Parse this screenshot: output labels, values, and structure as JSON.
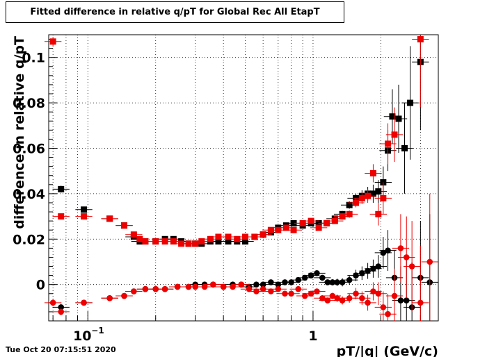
{
  "timestamp": "Tue Oct 20 07:15:51 2020",
  "chart_data": {
    "type": "scatter",
    "title": "Fitted difference in relative q/pT for Global Rec All EtapT",
    "xlabel": "pT/|q| (GeV/c)",
    "ylabel": "difference in relative q/pT",
    "x_scale": "log",
    "xlim": [
      0.067,
      3.6
    ],
    "ylim": [
      -0.016,
      0.11
    ],
    "grid": true,
    "y_ticks": [
      0,
      0.02,
      0.04,
      0.06,
      0.08,
      0.1
    ],
    "y_tick_labels": [
      "0",
      "0.02",
      "0.04",
      "0.06",
      "0.08",
      "0.1"
    ],
    "x_tick_labels": [
      {
        "value": 0.1,
        "base": "10",
        "exp": "−1"
      },
      {
        "value": 1,
        "base": "1",
        "exp": ""
      }
    ],
    "colors": {
      "black": "#000000",
      "red": "#ee0000"
    },
    "series": [
      {
        "marker": "square",
        "color": "#000000",
        "points": [
          [
            0.076,
            0.042,
            0.0015
          ],
          [
            0.096,
            0.033,
            0.0012
          ],
          [
            0.125,
            0.029,
            0.001
          ],
          [
            0.145,
            0.026,
            0.0008
          ],
          [
            0.16,
            0.021,
            0.0007
          ],
          [
            0.17,
            0.019,
            0.0007
          ],
          [
            0.18,
            0.019,
            0.0006
          ],
          [
            0.2,
            0.019,
            0.0005
          ],
          [
            0.22,
            0.02,
            0.0005
          ],
          [
            0.24,
            0.02,
            0.0005
          ],
          [
            0.26,
            0.019,
            0.0005
          ],
          [
            0.28,
            0.018,
            0.0005
          ],
          [
            0.3,
            0.018,
            0.0005
          ],
          [
            0.32,
            0.018,
            0.0005
          ],
          [
            0.35,
            0.019,
            0.0005
          ],
          [
            0.38,
            0.019,
            0.0005
          ],
          [
            0.42,
            0.019,
            0.0005
          ],
          [
            0.46,
            0.019,
            0.0005
          ],
          [
            0.5,
            0.019,
            0.0005
          ],
          [
            0.55,
            0.021,
            0.0006
          ],
          [
            0.6,
            0.022,
            0.0006
          ],
          [
            0.65,
            0.023,
            0.0006
          ],
          [
            0.7,
            0.025,
            0.0007
          ],
          [
            0.76,
            0.026,
            0.0007
          ],
          [
            0.82,
            0.027,
            0.0007
          ],
          [
            0.9,
            0.026,
            0.0008
          ],
          [
            0.98,
            0.027,
            0.0008
          ],
          [
            1.06,
            0.027,
            0.0009
          ],
          [
            1.15,
            0.027,
            0.001
          ],
          [
            1.25,
            0.029,
            0.0012
          ],
          [
            1.35,
            0.031,
            0.0014
          ],
          [
            1.45,
            0.035,
            0.0016
          ],
          [
            1.55,
            0.038,
            0.002
          ],
          [
            1.65,
            0.039,
            0.0025
          ],
          [
            1.75,
            0.04,
            0.003
          ],
          [
            1.85,
            0.04,
            0.004
          ],
          [
            1.95,
            0.041,
            0.005
          ],
          [
            2.05,
            0.045,
            0.007
          ],
          [
            2.15,
            0.059,
            0.009
          ],
          [
            2.25,
            0.074,
            0.012
          ],
          [
            2.4,
            0.073,
            0.015
          ],
          [
            2.55,
            0.06,
            0.02
          ],
          [
            2.7,
            0.08,
            0.025
          ],
          [
            3.0,
            0.098,
            0.03
          ]
        ]
      },
      {
        "marker": "square",
        "color": "#ee0000",
        "points": [
          [
            0.07,
            0.107,
            0.002
          ],
          [
            0.076,
            0.03,
            0.001
          ],
          [
            0.096,
            0.03,
            0.001
          ],
          [
            0.125,
            0.029,
            0.001
          ],
          [
            0.145,
            0.026,
            0.0008
          ],
          [
            0.16,
            0.022,
            0.0007
          ],
          [
            0.17,
            0.02,
            0.0007
          ],
          [
            0.18,
            0.019,
            0.0006
          ],
          [
            0.2,
            0.019,
            0.0005
          ],
          [
            0.22,
            0.019,
            0.0005
          ],
          [
            0.24,
            0.019,
            0.0005
          ],
          [
            0.26,
            0.018,
            0.0005
          ],
          [
            0.28,
            0.018,
            0.0005
          ],
          [
            0.3,
            0.018,
            0.0005
          ],
          [
            0.32,
            0.019,
            0.0005
          ],
          [
            0.35,
            0.02,
            0.0005
          ],
          [
            0.38,
            0.021,
            0.0005
          ],
          [
            0.42,
            0.021,
            0.0005
          ],
          [
            0.46,
            0.02,
            0.0005
          ],
          [
            0.5,
            0.021,
            0.0005
          ],
          [
            0.55,
            0.021,
            0.0006
          ],
          [
            0.6,
            0.022,
            0.0006
          ],
          [
            0.65,
            0.024,
            0.0006
          ],
          [
            0.7,
            0.024,
            0.0007
          ],
          [
            0.76,
            0.025,
            0.0007
          ],
          [
            0.82,
            0.024,
            0.0007
          ],
          [
            0.9,
            0.027,
            0.0008
          ],
          [
            0.98,
            0.028,
            0.0008
          ],
          [
            1.06,
            0.025,
            0.0009
          ],
          [
            1.15,
            0.027,
            0.001
          ],
          [
            1.25,
            0.028,
            0.0012
          ],
          [
            1.35,
            0.03,
            0.0014
          ],
          [
            1.45,
            0.031,
            0.0016
          ],
          [
            1.55,
            0.036,
            0.002
          ],
          [
            1.65,
            0.038,
            0.0025
          ],
          [
            1.75,
            0.039,
            0.003
          ],
          [
            1.85,
            0.049,
            0.004
          ],
          [
            1.95,
            0.031,
            0.005
          ],
          [
            2.05,
            0.038,
            0.007
          ],
          [
            2.15,
            0.062,
            0.009
          ],
          [
            2.3,
            0.066,
            0.012
          ],
          [
            3.0,
            0.108,
            0.03
          ]
        ]
      },
      {
        "marker": "circle",
        "color": "#000000",
        "points": [
          [
            0.076,
            -0.01,
            0.0015
          ],
          [
            0.096,
            -0.008,
            0.0012
          ],
          [
            0.125,
            -0.006,
            0.001
          ],
          [
            0.145,
            -0.005,
            0.0008
          ],
          [
            0.16,
            -0.003,
            0.0007
          ],
          [
            0.18,
            -0.002,
            0.0006
          ],
          [
            0.2,
            -0.002,
            0.0005
          ],
          [
            0.22,
            -0.002,
            0.0005
          ],
          [
            0.25,
            -0.001,
            0.0005
          ],
          [
            0.28,
            -0.001,
            0.0005
          ],
          [
            0.3,
            0.0,
            0.0005
          ],
          [
            0.33,
            0.0,
            0.0005
          ],
          [
            0.36,
            0.0,
            0.0005
          ],
          [
            0.4,
            -0.001,
            0.0005
          ],
          [
            0.44,
            0.0,
            0.0005
          ],
          [
            0.48,
            0.0,
            0.0005
          ],
          [
            0.52,
            -0.001,
            0.0006
          ],
          [
            0.56,
            0.0,
            0.0006
          ],
          [
            0.6,
            0.0,
            0.0006
          ],
          [
            0.65,
            0.001,
            0.0006
          ],
          [
            0.7,
            0.0,
            0.0007
          ],
          [
            0.75,
            0.001,
            0.0007
          ],
          [
            0.8,
            0.001,
            0.0007
          ],
          [
            0.86,
            0.002,
            0.0008
          ],
          [
            0.92,
            0.003,
            0.0008
          ],
          [
            0.98,
            0.004,
            0.0009
          ],
          [
            1.04,
            0.005,
            0.001
          ],
          [
            1.1,
            0.003,
            0.001
          ],
          [
            1.16,
            0.001,
            0.0012
          ],
          [
            1.22,
            0.001,
            0.0014
          ],
          [
            1.28,
            0.001,
            0.0016
          ],
          [
            1.35,
            0.001,
            0.0018
          ],
          [
            1.45,
            0.002,
            0.002
          ],
          [
            1.55,
            0.004,
            0.0025
          ],
          [
            1.65,
            0.005,
            0.003
          ],
          [
            1.75,
            0.006,
            0.0035
          ],
          [
            1.85,
            0.007,
            0.004
          ],
          [
            1.95,
            0.008,
            0.005
          ],
          [
            2.05,
            0.014,
            0.007
          ],
          [
            2.15,
            0.015,
            0.009
          ],
          [
            2.3,
            0.003,
            0.012
          ],
          [
            2.45,
            -0.007,
            0.015
          ],
          [
            2.6,
            -0.007,
            0.018
          ],
          [
            2.75,
            -0.01,
            0.02
          ],
          [
            3.0,
            0.003,
            0.025
          ],
          [
            3.3,
            0.001,
            0.03
          ]
        ]
      },
      {
        "marker": "circle",
        "color": "#ee0000",
        "points": [
          [
            0.07,
            -0.008,
            0.0015
          ],
          [
            0.076,
            -0.012,
            0.0015
          ],
          [
            0.096,
            -0.008,
            0.0012
          ],
          [
            0.125,
            -0.006,
            0.001
          ],
          [
            0.145,
            -0.005,
            0.0008
          ],
          [
            0.16,
            -0.003,
            0.0007
          ],
          [
            0.18,
            -0.002,
            0.0006
          ],
          [
            0.2,
            -0.002,
            0.0005
          ],
          [
            0.22,
            -0.002,
            0.0005
          ],
          [
            0.25,
            -0.001,
            0.0005
          ],
          [
            0.28,
            -0.001,
            0.0005
          ],
          [
            0.3,
            -0.001,
            0.0005
          ],
          [
            0.33,
            -0.001,
            0.0005
          ],
          [
            0.36,
            0.0,
            0.0005
          ],
          [
            0.4,
            -0.001,
            0.0005
          ],
          [
            0.44,
            -0.001,
            0.0005
          ],
          [
            0.48,
            0.0,
            0.0005
          ],
          [
            0.52,
            -0.002,
            0.0006
          ],
          [
            0.56,
            -0.003,
            0.0006
          ],
          [
            0.6,
            -0.002,
            0.0006
          ],
          [
            0.65,
            -0.003,
            0.0006
          ],
          [
            0.7,
            -0.002,
            0.0007
          ],
          [
            0.75,
            -0.004,
            0.0007
          ],
          [
            0.8,
            -0.004,
            0.0007
          ],
          [
            0.86,
            -0.002,
            0.0008
          ],
          [
            0.92,
            -0.005,
            0.0008
          ],
          [
            0.98,
            -0.004,
            0.0009
          ],
          [
            1.04,
            -0.003,
            0.001
          ],
          [
            1.1,
            -0.006,
            0.001
          ],
          [
            1.16,
            -0.007,
            0.0012
          ],
          [
            1.22,
            -0.005,
            0.0014
          ],
          [
            1.28,
            -0.006,
            0.0016
          ],
          [
            1.35,
            -0.007,
            0.0018
          ],
          [
            1.45,
            -0.006,
            0.002
          ],
          [
            1.55,
            -0.004,
            0.0025
          ],
          [
            1.65,
            -0.006,
            0.003
          ],
          [
            1.75,
            -0.008,
            0.0035
          ],
          [
            1.85,
            -0.003,
            0.004
          ],
          [
            1.95,
            -0.004,
            0.005
          ],
          [
            2.05,
            -0.01,
            0.007
          ],
          [
            2.15,
            -0.013,
            0.009
          ],
          [
            2.3,
            -0.005,
            0.012
          ],
          [
            2.45,
            0.016,
            0.015
          ],
          [
            2.6,
            0.012,
            0.018
          ],
          [
            2.75,
            0.008,
            0.02
          ],
          [
            3.0,
            -0.008,
            0.025
          ],
          [
            3.3,
            0.01,
            0.03
          ]
        ]
      }
    ]
  }
}
